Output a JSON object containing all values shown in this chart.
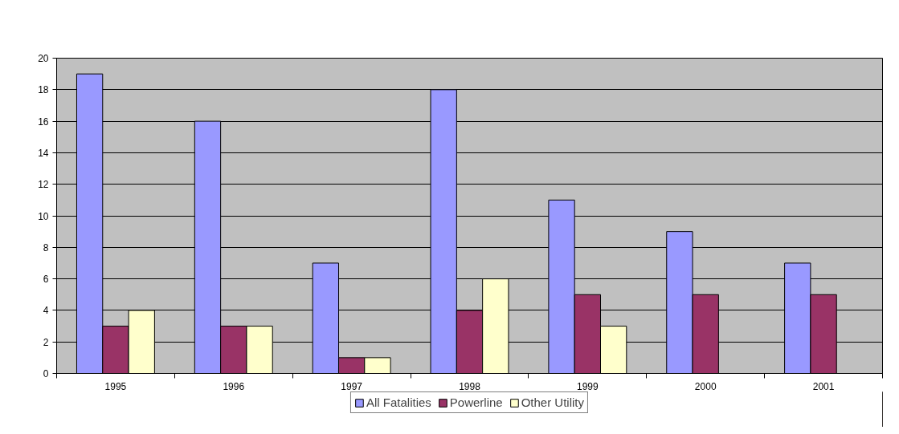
{
  "chart_data": {
    "type": "bar",
    "categories": [
      "1995",
      "1996",
      "1997",
      "1998",
      "1999",
      "2000",
      "2001"
    ],
    "series": [
      {
        "name": "All Fatalities",
        "color": "#9999ff",
        "values": [
          19,
          16,
          7,
          18,
          11,
          9,
          7
        ]
      },
      {
        "name": "Powerline",
        "color": "#993366",
        "values": [
          3,
          3,
          1,
          4,
          5,
          5,
          5
        ]
      },
      {
        "name": "Other Utility",
        "color": "#ffffcc",
        "values": [
          4,
          3,
          1,
          6,
          3,
          null,
          null
        ]
      }
    ],
    "ylim": [
      0,
      20
    ],
    "yticks": [
      0,
      2,
      4,
      6,
      8,
      10,
      12,
      14,
      16,
      18,
      20
    ],
    "grid": "y",
    "legend": "bottom"
  }
}
